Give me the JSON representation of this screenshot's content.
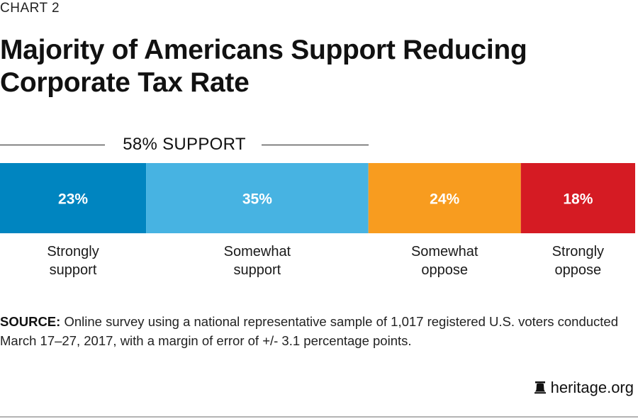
{
  "header": {
    "kicker": "CHART 2",
    "title": "Majority of Americans Support Reducing Corporate Tax Rate"
  },
  "bracket": {
    "label": "58% SUPPORT",
    "spans_categories": [
      "Strongly support",
      "Somewhat support"
    ]
  },
  "chart_data": {
    "type": "bar",
    "orientation": "horizontal-stacked",
    "title": "Majority of Americans Support Reducing Corporate Tax Rate",
    "xlabel": "",
    "ylabel": "",
    "unit": "%",
    "total": 100,
    "categories": [
      "Strongly support",
      "Somewhat support",
      "Somewhat oppose",
      "Strongly oppose"
    ],
    "category_lines": [
      [
        "Strongly",
        "support"
      ],
      [
        "Somewhat",
        "support"
      ],
      [
        "Somewhat",
        "oppose"
      ],
      [
        "Strongly",
        "oppose"
      ]
    ],
    "values": [
      23,
      35,
      24,
      18
    ],
    "data_labels": [
      "23%",
      "35%",
      "24%",
      "18%"
    ],
    "colors": [
      "#0085c0",
      "#47b3e2",
      "#f89c1f",
      "#d51b23"
    ],
    "annotation": "58% SUPPORT",
    "grid": false,
    "legend": "none"
  },
  "source": {
    "label": "SOURCE:",
    "text": " Online survey using a national representative sample of 1,017 registered U.S. voters conducted March 17–27, 2017, with a margin of error of +/- 3.1 percentage points."
  },
  "brand": {
    "icon": "liberty-bell-icon",
    "text": "heritage.org"
  }
}
